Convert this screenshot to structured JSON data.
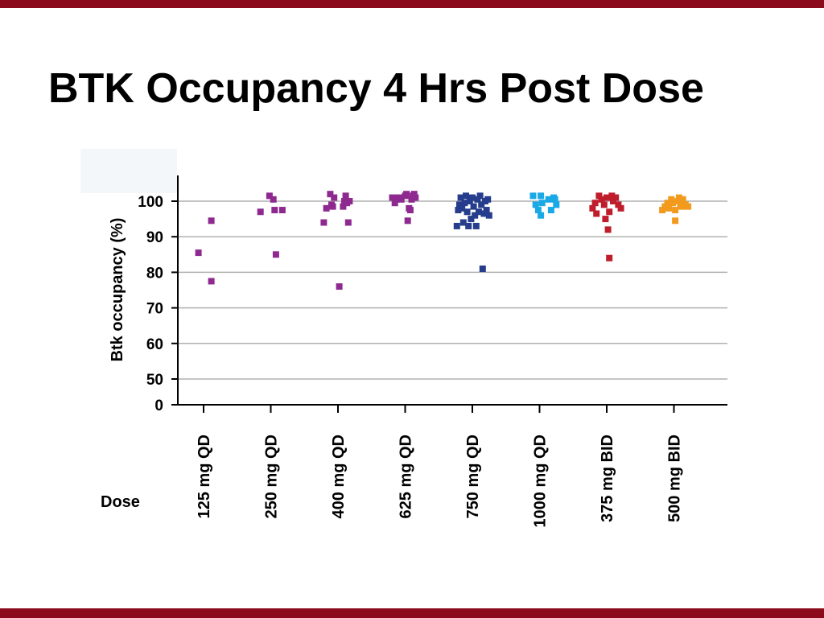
{
  "slide": {
    "title": "BTK Occupancy 4 Hrs Post Dose",
    "accent_color": "#8b0a1c"
  },
  "chart_data": {
    "type": "scatter",
    "title": "",
    "xlabel": "Dose",
    "ylabel": "Btk occupancy (%)",
    "categories": [
      "125 mg QD",
      "250 mg QD",
      "400 mg QD",
      "625 mg QD",
      "750 mg QD",
      "1000 mg QD",
      "375 mg BID",
      "500 mg BID"
    ],
    "yticks": [
      0,
      50,
      60,
      70,
      80,
      90,
      100
    ],
    "ylim": [
      0,
      105
    ],
    "y_axis_break": "0 to 50 compressed",
    "grid": true,
    "legend": "none",
    "series": [
      {
        "category": "125 mg QD",
        "color": "#8e2a8f",
        "points": [
          [
            -0.2,
            85.5
          ],
          [
            0.3,
            94.5
          ],
          [
            0.3,
            77.5
          ]
        ]
      },
      {
        "category": "250 mg QD",
        "color": "#8e2a8f",
        "points": [
          [
            -0.4,
            97
          ],
          [
            -0.05,
            101.5
          ],
          [
            0.1,
            100.5
          ],
          [
            0.15,
            97.5
          ],
          [
            0.2,
            85
          ],
          [
            0.45,
            97.5
          ]
        ]
      },
      {
        "category": "400 mg QD",
        "color": "#8e2a8f",
        "points": [
          [
            -0.55,
            94
          ],
          [
            -0.45,
            98
          ],
          [
            -0.3,
            102
          ],
          [
            -0.25,
            99
          ],
          [
            -0.15,
            101
          ],
          [
            -0.2,
            98.5
          ],
          [
            0.05,
            76
          ],
          [
            0.2,
            98.5
          ],
          [
            0.25,
            100
          ],
          [
            0.3,
            101.5
          ],
          [
            0.35,
            99.5
          ],
          [
            0.4,
            94
          ],
          [
            0.45,
            100
          ]
        ]
      },
      {
        "category": "625 mg QD",
        "color": "#8e2a8f",
        "points": [
          [
            -0.5,
            101
          ],
          [
            -0.4,
            99.5
          ],
          [
            -0.35,
            100.5
          ],
          [
            -0.25,
            101
          ],
          [
            -0.15,
            100.5
          ],
          [
            0,
            101.5
          ],
          [
            0.05,
            102
          ],
          [
            0.1,
            94.5
          ],
          [
            0.15,
            98
          ],
          [
            0.2,
            97.5
          ],
          [
            0.25,
            100.5
          ],
          [
            0.3,
            101.5
          ],
          [
            0.35,
            102
          ],
          [
            0.4,
            101
          ]
        ]
      },
      {
        "category": "750 mg QD",
        "color": "#263c8c",
        "points": [
          [
            -0.6,
            93
          ],
          [
            -0.55,
            97.5
          ],
          [
            -0.5,
            99
          ],
          [
            -0.45,
            101
          ],
          [
            -0.4,
            98
          ],
          [
            -0.35,
            94
          ],
          [
            -0.3,
            99.5
          ],
          [
            -0.25,
            101.5
          ],
          [
            -0.2,
            97
          ],
          [
            -0.15,
            93
          ],
          [
            -0.1,
            100
          ],
          [
            -0.05,
            95
          ],
          [
            0,
            101
          ],
          [
            0.05,
            98.5
          ],
          [
            0.1,
            96
          ],
          [
            0.15,
            93
          ],
          [
            0.2,
            100.5
          ],
          [
            0.25,
            97
          ],
          [
            0.3,
            101.5
          ],
          [
            0.35,
            99
          ],
          [
            0.4,
            81
          ],
          [
            0.45,
            96.5
          ],
          [
            0.5,
            100
          ],
          [
            0.55,
            97.5
          ],
          [
            0.6,
            100.5
          ],
          [
            0.65,
            96
          ]
        ]
      },
      {
        "category": "1000 mg QD",
        "color": "#19a9e6",
        "points": [
          [
            -0.25,
            101.5
          ],
          [
            -0.15,
            99
          ],
          [
            -0.05,
            97.5
          ],
          [
            0.05,
            101.5
          ],
          [
            0.1,
            99.5
          ],
          [
            0.05,
            96
          ],
          [
            0.35,
            100.5
          ],
          [
            0.45,
            97.5
          ],
          [
            0.55,
            101
          ],
          [
            0.6,
            100.5
          ],
          [
            0.65,
            99
          ]
        ]
      },
      {
        "category": "375 mg BID",
        "color": "#c01d2c",
        "points": [
          [
            -0.55,
            98
          ],
          [
            -0.45,
            99.5
          ],
          [
            -0.4,
            96.5
          ],
          [
            -0.3,
            101.5
          ],
          [
            -0.2,
            100.5
          ],
          [
            -0.1,
            99
          ],
          [
            -0.05,
            95
          ],
          [
            0.05,
            92
          ],
          [
            0,
            101
          ],
          [
            0.1,
            97
          ],
          [
            0.1,
            84
          ],
          [
            0.2,
            101.5
          ],
          [
            0.25,
            100
          ],
          [
            0.35,
            101
          ],
          [
            0.45,
            99
          ],
          [
            0.55,
            98
          ]
        ]
      },
      {
        "category": "500 mg BID",
        "color": "#f29a1e",
        "points": [
          [
            -0.45,
            97.5
          ],
          [
            -0.35,
            98.5
          ],
          [
            -0.25,
            99.5
          ],
          [
            -0.2,
            98
          ],
          [
            -0.1,
            100.5
          ],
          [
            -0.05,
            99.5
          ],
          [
            0.05,
            97.5
          ],
          [
            0.05,
            94.5
          ],
          [
            0.15,
            100
          ],
          [
            0.2,
            101
          ],
          [
            0.25,
            99
          ],
          [
            0.3,
            98.5
          ],
          [
            0.35,
            100.5
          ],
          [
            0.45,
            99
          ],
          [
            0.55,
            98.5
          ]
        ]
      }
    ]
  }
}
